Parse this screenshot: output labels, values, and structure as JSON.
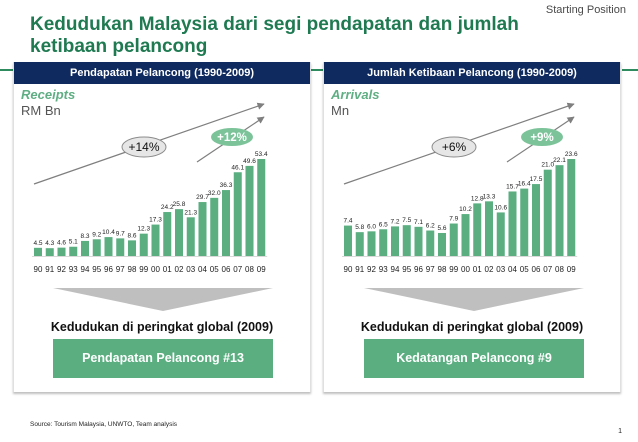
{
  "header": {
    "starting_position": "Starting Position",
    "title": "Kedudukan Malaysia dari segi pendapatan dan jumlah ketibaan pelancong"
  },
  "colors": {
    "title_green": "#1f7a52",
    "bar_green": "#5aae80",
    "header_navy": "#0f2a5f",
    "arrow_gray": "#7f7f7f",
    "triangle_gray": "#bfbfbf"
  },
  "panels": [
    {
      "header": "Pendapatan Pelancong (1990-2009)",
      "metric": "Receipts",
      "unit": "RM Bn",
      "cagr_long": "+14%",
      "cagr_short": "+12%",
      "rank_label": "Kedudukan di peringkat global (2009)",
      "rank_value": "Pendapatan Pelancong #13"
    },
    {
      "header": "Jumlah Ketibaan Pelancong (1990-2009)",
      "metric": "Arrivals",
      "unit": "Mn",
      "cagr_long": "+6%",
      "cagr_short": "+9%",
      "rank_label": "Kedudukan di peringkat global (2009)",
      "rank_value": "Kedatangan Pelancong #9"
    }
  ],
  "chart_data": [
    {
      "type": "bar",
      "title": "Pendapatan Pelancong (1990-2009)",
      "xlabel": "",
      "ylabel": "Receipts (RM Bn)",
      "categories": [
        "90",
        "91",
        "92",
        "93",
        "94",
        "95",
        "96",
        "97",
        "98",
        "99",
        "00",
        "01",
        "02",
        "03",
        "04",
        "05",
        "06",
        "07",
        "08",
        "09"
      ],
      "values": [
        4.5,
        4.3,
        4.6,
        5.1,
        8.3,
        9.2,
        10.4,
        9.7,
        8.6,
        12.3,
        17.3,
        24.2,
        25.8,
        21.3,
        29.7,
        32.0,
        36.3,
        46.1,
        49.6,
        53.4
      ],
      "annotations": [
        {
          "label": "+14%",
          "type": "CAGR",
          "span": "1990-2009"
        },
        {
          "label": "+12%",
          "type": "CAGR",
          "span": "recent years"
        }
      ],
      "grid": false,
      "data_labels": true
    },
    {
      "type": "bar",
      "title": "Jumlah Ketibaan Pelancong (1990-2009)",
      "xlabel": "",
      "ylabel": "Arrivals (Mn)",
      "categories": [
        "90",
        "91",
        "92",
        "93",
        "94",
        "95",
        "96",
        "97",
        "98",
        "99",
        "00",
        "01",
        "02",
        "03",
        "04",
        "05",
        "06",
        "07",
        "08",
        "09"
      ],
      "values": [
        7.4,
        5.8,
        6.0,
        6.5,
        7.2,
        7.5,
        7.1,
        6.2,
        5.6,
        7.9,
        10.2,
        12.8,
        13.3,
        10.6,
        15.7,
        16.4,
        17.5,
        21.0,
        22.1,
        23.6
      ],
      "annotations": [
        {
          "label": "+6%",
          "type": "CAGR",
          "span": "1990-2009"
        },
        {
          "label": "+9%",
          "type": "CAGR",
          "span": "recent years"
        }
      ],
      "grid": false,
      "data_labels": true
    }
  ],
  "footer": {
    "source": "Source: Tourism Malaysia, UNWTO, Team analysis",
    "page_number": "1"
  }
}
